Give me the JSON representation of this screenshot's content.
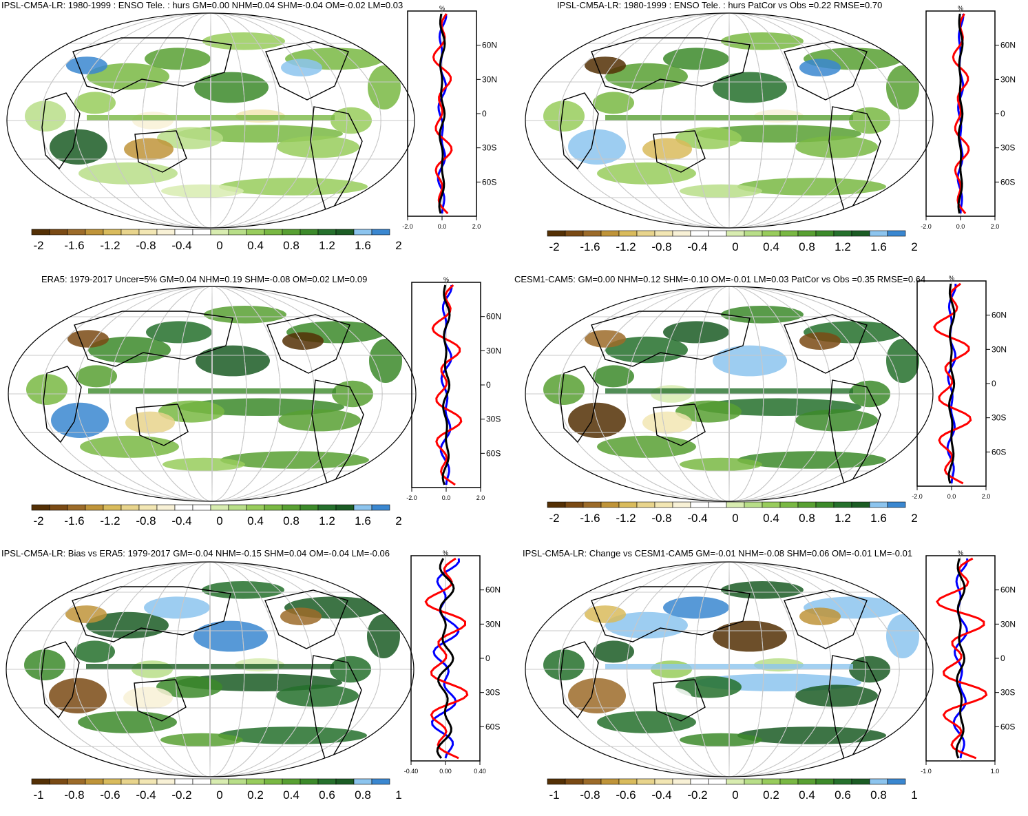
{
  "colors": {
    "scale": [
      "#543005",
      "#7a4a14",
      "#9c6b29",
      "#bf9439",
      "#d9bb5c",
      "#e8d48c",
      "#f2e6b3",
      "#f8f1d6",
      "#ffffff",
      "#ffffff",
      "#d8ecb0",
      "#b8de88",
      "#98cc5c",
      "#79b843",
      "#58a032",
      "#3c8a2a",
      "#25702c",
      "#1b5c24",
      "#8cc4ee",
      "#3a87d0"
    ],
    "land": "#000000",
    "grid": "#c8c8c8",
    "ocean": "#ffffff",
    "obs_line": "#ff0000",
    "model_line": "#0000ff",
    "mean_line": "#000000"
  },
  "panels": [
    {
      "id": "p1",
      "title": "IPSL-CM5A-LR: 1980-1999 : ENSO Tele. : hurs GM=0.00 NHM=0.04 SHM=-0.04 OM=-0.02 LM=0.03",
      "colorbar_labels": [
        "-2",
        "-1.6",
        "-1.2",
        "-0.8",
        "-0.4",
        "0",
        "0.4",
        "0.8",
        "1.2",
        "1.6",
        "2"
      ],
      "profile_x_labels": [
        "-2.0",
        "0.0",
        "2.0"
      ],
      "profile_y_labels": [
        "60N",
        "30N",
        "0",
        "30S",
        "60S"
      ],
      "unit": "%"
    },
    {
      "id": "p2",
      "title": "IPSL-CM5A-LR: 1980-1999 : ENSO Tele. : hurs PatCor vs Obs =0.22 RMSE=0.70",
      "colorbar_labels": [
        "-2",
        "-1.6",
        "-1.2",
        "-0.8",
        "-0.4",
        "0",
        "0.4",
        "0.8",
        "1.2",
        "1.6",
        "2"
      ],
      "profile_x_labels": [
        "-2.0",
        "0.0",
        "2.0"
      ],
      "profile_y_labels": [
        "60N",
        "30N",
        "0",
        "30S",
        "60S"
      ],
      "unit": "%"
    },
    {
      "id": "p3",
      "title": "ERA5: 1979-2017 Uncer=5% GM=0.04 NHM=0.19 SHM=-0.08 OM=0.02 LM=0.09",
      "colorbar_labels": [
        "-2",
        "-1.6",
        "-1.2",
        "-0.8",
        "-0.4",
        "0",
        "0.4",
        "0.8",
        "1.2",
        "1.6",
        "2"
      ],
      "profile_x_labels": [
        "-2.0",
        "0.0",
        "2.0"
      ],
      "profile_y_labels": [
        "60N",
        "30N",
        "0",
        "30S",
        "60S"
      ],
      "unit": "%"
    },
    {
      "id": "p4",
      "title": "CESM1-CAM5: GM=0.00 NHM=0.12 SHM=-0.10 OM=-0.01 LM=0.03 PatCor vs Obs =0.35 RMSE=0.64",
      "colorbar_labels": [
        "-2",
        "-1.6",
        "-1.2",
        "-0.8",
        "-0.4",
        "0",
        "0.4",
        "0.8",
        "1.2",
        "1.6",
        "2"
      ],
      "profile_x_labels": [
        "-2.0",
        "0.0",
        "2.0"
      ],
      "profile_y_labels": [
        "60N",
        "30N",
        "0",
        "30S",
        "60S"
      ],
      "unit": "%"
    },
    {
      "id": "p5",
      "title": "IPSL-CM5A-LR: Bias vs ERA5: 1979-2017 GM=-0.04 NHM=-0.15 SHM=0.04 OM=-0.04 LM=-0.06",
      "colorbar_labels": [
        "-1",
        "-0.8",
        "-0.6",
        "-0.4",
        "-0.2",
        "0",
        "0.2",
        "0.4",
        "0.6",
        "0.8",
        "1"
      ],
      "profile_x_labels": [
        "-0.40",
        "0.00",
        "0.40"
      ],
      "profile_y_labels": [
        "60N",
        "30N",
        "0",
        "30S",
        "60S"
      ],
      "unit": "%"
    },
    {
      "id": "p6",
      "title": "IPSL-CM5A-LR: Change vs CESM1-CAM5 GM=-0.01 NHM=-0.08 SHM=0.06 OM=-0.01 LM=-0.01",
      "colorbar_labels": [
        "-1",
        "-0.8",
        "-0.6",
        "-0.4",
        "-0.2",
        "0",
        "0.2",
        "0.4",
        "0.6",
        "0.8",
        "1"
      ],
      "profile_x_labels": [
        "-1.0",
        "1.0"
      ],
      "profile_y_labels": [
        "60N",
        "30N",
        "0",
        "30S",
        "60S"
      ],
      "unit": "%"
    }
  ]
}
